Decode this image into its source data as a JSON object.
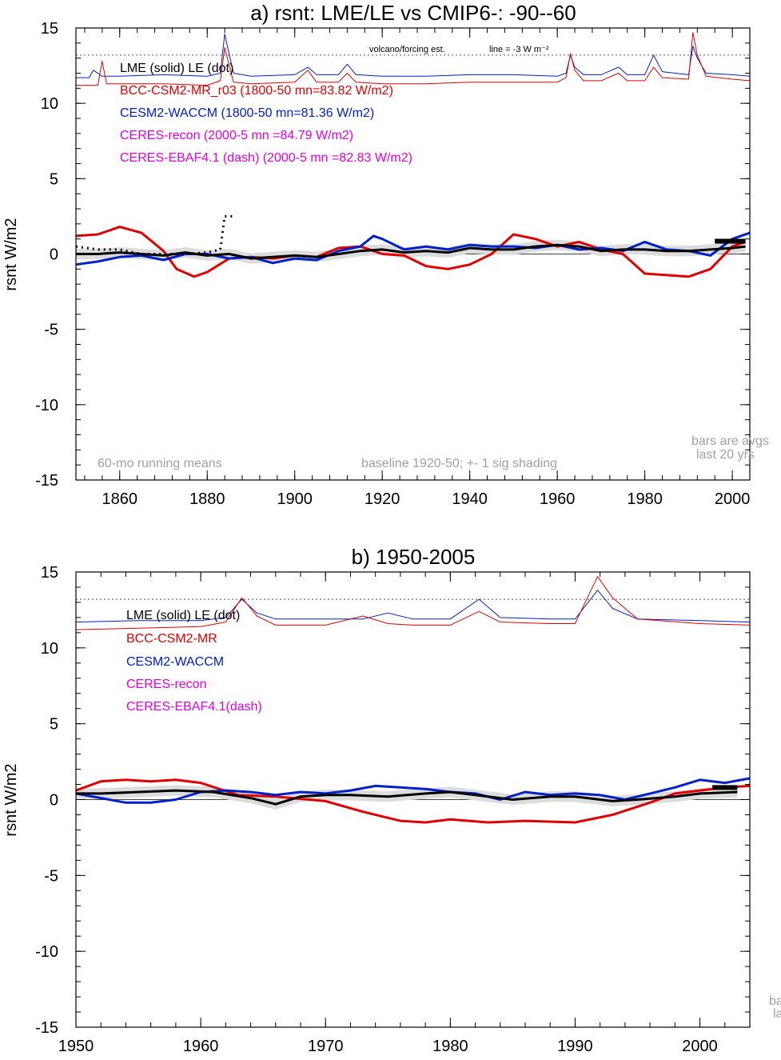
{
  "chart_data": [
    {
      "type": "line",
      "title": "a) rsnt: LME/LE vs CMIP6-: -90--60",
      "ylabel": "rsnt W/m2",
      "xlim": [
        1850,
        2004
      ],
      "ylim": [
        -15,
        15
      ],
      "xticks": [
        1860,
        1880,
        1900,
        1920,
        1940,
        1960,
        1980,
        2000
      ],
      "yticks": [
        15,
        10,
        5,
        0,
        -5,
        -10,
        -15
      ],
      "legend": [
        {
          "text": "LME (solid)   LE (dot)",
          "color": "#000000"
        },
        {
          "text": "BCC-CSM2-MR_r03 (1800-50 mn=83.82 W/m2)",
          "color": "#e00000"
        },
        {
          "text": "CESM2-WACCM (1800-50 mn=81.36 W/m2)",
          "color": "#0020c8"
        },
        {
          "text": "CERES-recon (2000-5 mn =84.79 W/m2)",
          "color": "#e000e0"
        },
        {
          "text": "CERES-EBAF4.1 (dash) (2000-5 mn =82.83 W/m2)",
          "color": "#e000e0"
        }
      ],
      "annotations": {
        "volcano": "volcano/forcing est.",
        "line_note": "line = -3 W m⁻²",
        "running": "60-mo running means",
        "baseline": "baseline 1920-50; +- 1 sig shading",
        "bars1": "bars are avgs",
        "bars2": "last 20 yrs"
      },
      "dotted_ref_y": 13.2,
      "bar_last20": {
        "x": [
          1996,
          2003
        ],
        "y": 0.85
      },
      "series": [
        {
          "name": "LME",
          "color": "#000000",
          "width": 3,
          "x": [
            1850,
            1855,
            1860,
            1865,
            1870,
            1875,
            1880,
            1885,
            1890,
            1895,
            1900,
            1905,
            1910,
            1915,
            1920,
            1925,
            1930,
            1935,
            1940,
            1945,
            1950,
            1955,
            1960,
            1965,
            1970,
            1975,
            1980,
            1985,
            1990,
            1995,
            2000,
            2003
          ],
          "y": [
            0.0,
            0.0,
            0.1,
            0.0,
            -0.1,
            0.1,
            -0.1,
            0.0,
            -0.3,
            -0.2,
            -0.1,
            -0.2,
            0.0,
            0.2,
            0.3,
            0.1,
            0.2,
            0.1,
            0.4,
            0.3,
            0.3,
            0.5,
            0.6,
            0.5,
            0.2,
            0.3,
            0.3,
            0.2,
            0.2,
            0.3,
            0.4,
            0.5
          ]
        },
        {
          "name": "LE",
          "color": "#000000",
          "width": 3,
          "dash": "2,5",
          "x": [
            1850,
            1855,
            1860,
            1865,
            1870,
            1875,
            1880,
            1883,
            1884,
            1886
          ],
          "y": [
            0.5,
            0.3,
            0.3,
            0.0,
            0.0,
            0.0,
            0.1,
            0.3,
            2.5,
            2.5
          ]
        },
        {
          "name": "BCC-CSM2-MR_r03",
          "color": "#e00000",
          "width": 3,
          "x": [
            1850,
            1855,
            1860,
            1865,
            1870,
            1873,
            1877,
            1880,
            1885,
            1890,
            1895,
            1900,
            1905,
            1910,
            1915,
            1920,
            1925,
            1930,
            1935,
            1940,
            1945,
            1950,
            1955,
            1960,
            1965,
            1970,
            1975,
            1980,
            1985,
            1990,
            1995,
            2000,
            2003
          ],
          "y": [
            1.2,
            1.3,
            1.8,
            1.4,
            0.2,
            -1.0,
            -1.5,
            -1.2,
            -0.3,
            -0.2,
            -0.3,
            -0.1,
            -0.2,
            0.4,
            0.5,
            0.0,
            -0.1,
            -0.8,
            -1.0,
            -0.7,
            0.0,
            1.3,
            1.0,
            0.5,
            0.8,
            0.3,
            0.0,
            -1.3,
            -1.4,
            -1.5,
            -1.0,
            0.5,
            0.8
          ]
        },
        {
          "name": "CESM2-WACCM",
          "color": "#0020c8",
          "width": 3,
          "x": [
            1850,
            1855,
            1860,
            1865,
            1870,
            1875,
            1880,
            1885,
            1890,
            1895,
            1900,
            1905,
            1910,
            1915,
            1918,
            1920,
            1925,
            1930,
            1935,
            1940,
            1945,
            1950,
            1955,
            1960,
            1965,
            1970,
            1975,
            1980,
            1985,
            1990,
            1995,
            2000,
            2004
          ],
          "y": [
            -0.7,
            -0.5,
            -0.2,
            -0.1,
            -0.4,
            0.0,
            0.0,
            -0.3,
            -0.2,
            -0.6,
            -0.3,
            -0.4,
            0.2,
            0.5,
            1.2,
            1.0,
            0.3,
            0.5,
            0.3,
            0.6,
            0.5,
            0.5,
            0.4,
            0.6,
            0.3,
            0.4,
            0.2,
            0.8,
            0.3,
            0.2,
            -0.1,
            1.0,
            1.4
          ]
        },
        {
          "name": "CESM2-WACCM forcing",
          "color": "#0020c8",
          "width": 1,
          "x": [
            1850,
            1853,
            1854,
            1856,
            1860,
            1870,
            1880,
            1883,
            1884,
            1886,
            1890,
            1900,
            1903,
            1905,
            1910,
            1912,
            1914,
            1920,
            1930,
            1940,
            1950,
            1960,
            1962,
            1963,
            1964,
            1966,
            1970,
            1974,
            1976,
            1980,
            1982,
            1984,
            1990,
            1991,
            1992,
            1994,
            2000,
            2004
          ],
          "y": [
            11.7,
            11.7,
            12.2,
            11.8,
            11.8,
            11.9,
            11.8,
            12.0,
            14.6,
            12.0,
            11.8,
            11.9,
            12.4,
            11.9,
            11.9,
            12.6,
            11.9,
            11.8,
            11.8,
            11.9,
            11.9,
            11.8,
            12.0,
            13.2,
            12.4,
            11.9,
            11.9,
            12.4,
            11.9,
            11.9,
            13.2,
            12.1,
            11.9,
            13.8,
            13.0,
            12.0,
            11.9,
            11.8
          ]
        },
        {
          "name": "BCC-CSM2-MR forcing",
          "color": "#e00000",
          "width": 1,
          "x": [
            1850,
            1855,
            1856,
            1857,
            1860,
            1870,
            1880,
            1883,
            1884,
            1886,
            1890,
            1900,
            1903,
            1905,
            1910,
            1912,
            1914,
            1920,
            1930,
            1940,
            1950,
            1960,
            1962,
            1963,
            1964,
            1966,
            1970,
            1974,
            1976,
            1980,
            1982,
            1984,
            1990,
            1991,
            1992,
            1994,
            2000,
            2004
          ],
          "y": [
            11.2,
            11.2,
            12.8,
            11.3,
            11.3,
            11.3,
            11.2,
            11.5,
            13.7,
            11.4,
            11.3,
            11.4,
            12.2,
            11.4,
            11.4,
            12.0,
            11.4,
            11.3,
            11.3,
            11.4,
            11.4,
            11.4,
            11.7,
            13.3,
            12.2,
            11.5,
            11.5,
            12.0,
            11.5,
            11.5,
            12.4,
            11.7,
            11.6,
            14.7,
            13.2,
            11.8,
            11.6,
            11.5
          ]
        }
      ]
    },
    {
      "type": "line",
      "title": "b) 1950-2005",
      "ylabel": "rsnt W/m2",
      "xlim": [
        1950,
        2004
      ],
      "ylim": [
        -15,
        15
      ],
      "xticks": [
        1950,
        1960,
        1970,
        1980,
        1990,
        2000
      ],
      "yticks": [
        15,
        10,
        5,
        0,
        -5,
        -10,
        -15
      ],
      "legend": [
        {
          "text": "LME (solid)      LE (dot)",
          "color": "#000000"
        },
        {
          "text": "BCC-CSM2-MR",
          "color": "#e00000"
        },
        {
          "text": "CESM2-WACCM",
          "color": "#0020c8"
        },
        {
          "text": "CERES-recon",
          "color": "#e000e0"
        },
        {
          "text": "CERES-EBAF4.1(dash)",
          "color": "#e000e0"
        }
      ],
      "annotations": {
        "bars1": "ba",
        "bars2": "la"
      },
      "dotted_ref_y": 13.2,
      "bar_last20": {
        "x": [
          2001,
          2003
        ],
        "y": 0.8
      },
      "series": [
        {
          "name": "LME",
          "color": "#000000",
          "width": 3,
          "x": [
            1950,
            1952,
            1955,
            1958,
            1961,
            1964,
            1966,
            1968,
            1970,
            1972,
            1975,
            1978,
            1980,
            1982,
            1985,
            1988,
            1990,
            1993,
            1995,
            1998,
            2000,
            2003
          ],
          "y": [
            0.4,
            0.4,
            0.5,
            0.6,
            0.5,
            0.1,
            -0.3,
            0.2,
            0.3,
            0.3,
            0.2,
            0.4,
            0.5,
            0.3,
            0.0,
            0.2,
            0.2,
            -0.1,
            0.0,
            0.2,
            0.4,
            0.5
          ]
        },
        {
          "name": "BCC-CSM2-MR",
          "color": "#e00000",
          "width": 3,
          "x": [
            1950,
            1952,
            1954,
            1956,
            1958,
            1960,
            1963,
            1966,
            1970,
            1973,
            1976,
            1978,
            1980,
            1983,
            1986,
            1990,
            1993,
            1996,
            1998,
            2000,
            2002,
            2004
          ],
          "y": [
            0.6,
            1.2,
            1.3,
            1.2,
            1.3,
            1.1,
            0.3,
            0.2,
            -0.1,
            -0.8,
            -1.4,
            -1.5,
            -1.3,
            -1.5,
            -1.4,
            -1.5,
            -1.0,
            -0.2,
            0.4,
            0.6,
            0.8,
            0.9
          ]
        },
        {
          "name": "CESM2-WACCM",
          "color": "#0020c8",
          "width": 3,
          "x": [
            1950,
            1952,
            1954,
            1956,
            1958,
            1960,
            1962,
            1964,
            1966,
            1968,
            1970,
            1972,
            1974,
            1976,
            1978,
            1980,
            1982,
            1984,
            1986,
            1988,
            1990,
            1992,
            1994,
            1996,
            1998,
            2000,
            2002,
            2004
          ],
          "y": [
            0.4,
            0.1,
            -0.2,
            -0.2,
            0.0,
            0.5,
            0.6,
            0.5,
            0.3,
            0.5,
            0.4,
            0.6,
            0.9,
            0.8,
            0.7,
            0.5,
            0.4,
            0.0,
            0.5,
            0.3,
            0.4,
            0.3,
            0.0,
            0.4,
            0.8,
            1.3,
            1.1,
            1.4
          ]
        },
        {
          "name": "CESM2-WACCM forcing",
          "color": "#0020c8",
          "width": 1,
          "x": [
            1950,
            1955,
            1960,
            1962,
            1963.3,
            1964.5,
            1966,
            1970,
            1973,
            1975,
            1977,
            1980,
            1982.3,
            1984,
            1988,
            1990,
            1991.8,
            1993,
            1995,
            2000,
            2004
          ],
          "y": [
            11.7,
            11.8,
            11.8,
            12.0,
            13.2,
            12.3,
            11.9,
            11.9,
            11.9,
            12.3,
            11.9,
            11.9,
            13.2,
            12.0,
            11.9,
            11.9,
            13.8,
            12.6,
            11.9,
            11.8,
            11.7
          ]
        },
        {
          "name": "BCC-CSM2-MR forcing",
          "color": "#e00000",
          "width": 1,
          "x": [
            1950,
            1955,
            1960,
            1962,
            1963.3,
            1964.5,
            1966,
            1970,
            1973,
            1975,
            1977,
            1980,
            1982.3,
            1984,
            1988,
            1990,
            1991.8,
            1993,
            1995,
            2000,
            2004
          ],
          "y": [
            11.2,
            11.3,
            11.4,
            11.7,
            13.3,
            12.1,
            11.5,
            11.5,
            12.1,
            11.6,
            11.5,
            11.5,
            12.4,
            11.7,
            11.6,
            11.6,
            14.7,
            13.3,
            11.9,
            11.6,
            11.5
          ]
        }
      ]
    }
  ]
}
